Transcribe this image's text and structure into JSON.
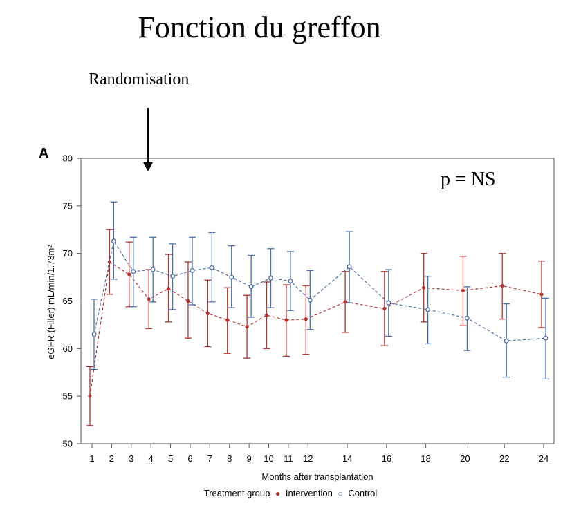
{
  "slide": {
    "title": "Fonction du greffon",
    "annotation": "Randomisation",
    "panel_letter": "A",
    "pvalue": "p = NS"
  },
  "colors": {
    "intervention": "#b2322e",
    "control": "#4b6ea8"
  },
  "chart_data": {
    "type": "line",
    "xlabel": "Months after transplantation",
    "ylabel": "eGFR (Filler) mL/min/1.73m²",
    "x_ticks": [
      1,
      2,
      3,
      4,
      5,
      6,
      7,
      8,
      9,
      10,
      11,
      12,
      14,
      16,
      18,
      20,
      22,
      24
    ],
    "ylim": [
      50,
      80
    ],
    "y_ticks": [
      50,
      55,
      60,
      65,
      70,
      75,
      80
    ],
    "grid": false,
    "line_style": "dashed",
    "error_bars": true,
    "legend_title": "Treatment group",
    "legend_placement": "bottom",
    "series": [
      {
        "name": "Intervention",
        "marker": "filled-dot",
        "x": [
          1,
          2,
          3,
          4,
          5,
          6,
          7,
          8,
          9,
          10,
          11,
          12,
          14,
          16,
          18,
          20,
          22,
          24
        ],
        "y": [
          55.0,
          69.1,
          67.8,
          65.2,
          66.3,
          65.0,
          63.7,
          63.0,
          62.3,
          63.5,
          63.0,
          63.1,
          64.9,
          64.2,
          66.4,
          66.1,
          66.6,
          65.7
        ],
        "lower": [
          51.9,
          65.7,
          64.4,
          62.1,
          62.8,
          61.1,
          60.2,
          59.5,
          59.0,
          60.0,
          59.2,
          59.4,
          61.7,
          60.3,
          62.8,
          62.4,
          63.1,
          62.2
        ],
        "upper": [
          58.1,
          72.5,
          71.2,
          68.3,
          69.9,
          69.1,
          67.2,
          66.4,
          65.6,
          67.0,
          66.7,
          66.6,
          68.1,
          68.1,
          70.0,
          69.7,
          70.0,
          69.2
        ]
      },
      {
        "name": "Control",
        "marker": "open-circle",
        "x": [
          1,
          2,
          3,
          4,
          5,
          6,
          7,
          8,
          9,
          10,
          11,
          12,
          14,
          16,
          18,
          20,
          22,
          24
        ],
        "y": [
          61.5,
          71.3,
          68.1,
          68.3,
          67.6,
          68.2,
          68.5,
          67.5,
          66.5,
          67.4,
          67.1,
          65.1,
          68.6,
          64.8,
          64.1,
          63.2,
          60.8,
          61.1
        ],
        "lower": [
          57.8,
          67.3,
          64.4,
          64.9,
          64.1,
          64.6,
          64.9,
          64.3,
          63.3,
          64.3,
          64.0,
          62.0,
          64.8,
          61.3,
          60.5,
          59.8,
          57.0,
          56.8
        ],
        "upper": [
          65.2,
          75.4,
          71.7,
          71.7,
          71.0,
          71.7,
          72.2,
          70.8,
          69.8,
          70.5,
          70.2,
          68.2,
          72.3,
          68.3,
          67.6,
          66.5,
          64.7,
          65.3
        ]
      }
    ]
  }
}
